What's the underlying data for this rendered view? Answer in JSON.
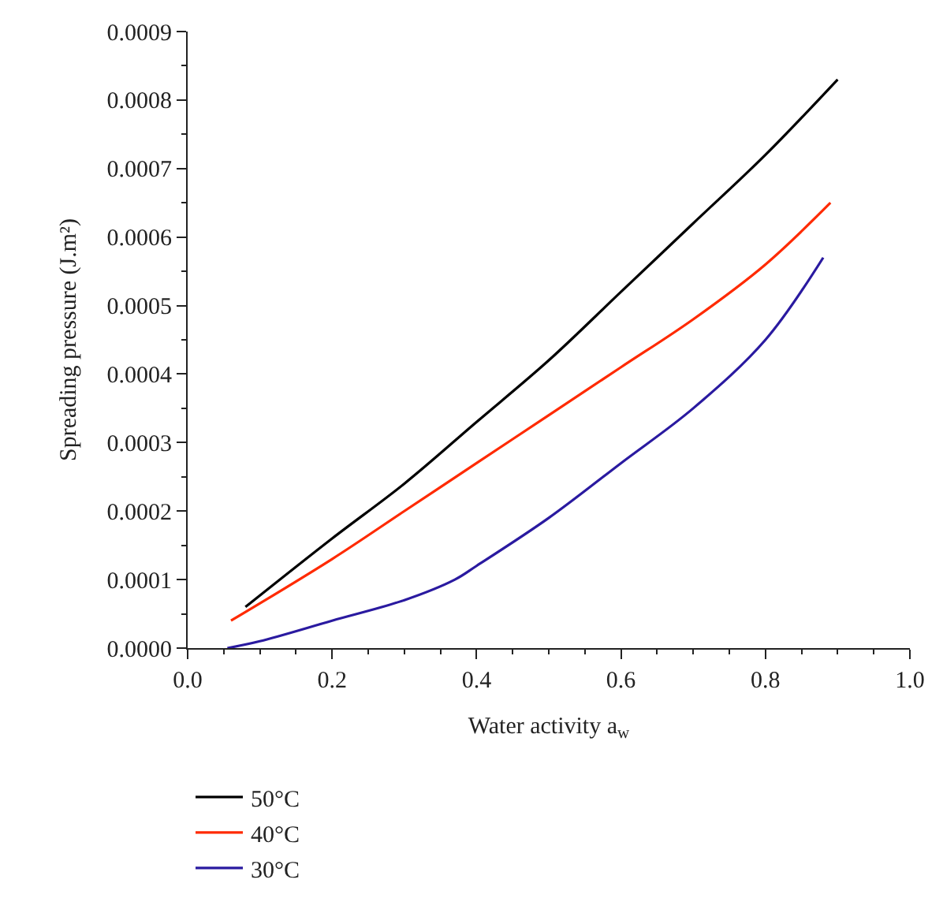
{
  "chart_data": {
    "type": "line",
    "xlabel": "Water activity a$_{w}$",
    "ylabel": "Spreading pressure (J.m²)",
    "xlim": [
      0.0,
      1.0
    ],
    "xticks": [
      {
        "value": 0.0,
        "label": "0.0"
      },
      0.2,
      0.4,
      0.6,
      0.8,
      {
        "value": 1.0,
        "label": "1.0"
      }
    ],
    "ylim": [
      0,
      0.0009
    ],
    "yticks": [
      {
        "value": 0,
        "label": "0.0000"
      },
      {
        "value": 0.0001,
        "label": "0.0001"
      },
      {
        "value": 0.0002,
        "label": "0.0002"
      },
      {
        "value": 0.0003,
        "label": "0.0003"
      },
      {
        "value": 0.0004,
        "label": "0.0004"
      },
      {
        "value": 0.0005,
        "label": "0.0005"
      },
      {
        "value": 0.0006,
        "label": "0.0006"
      },
      {
        "value": 0.0007,
        "label": "0.0007"
      },
      {
        "value": 0.0008,
        "label": "0.0008"
      },
      {
        "value": 0.0009,
        "label": "0.0009"
      }
    ],
    "legend": "bottom left",
    "marker": "none",
    "line_style": "solid",
    "series": [
      {
        "name": "50°C",
        "color": "#000000",
        "x": [
          0.08,
          0.2,
          0.3,
          0.4,
          0.5,
          0.6,
          0.7,
          0.8,
          0.9
        ],
        "values": [
          6e-05,
          0.00016,
          0.00024,
          0.00033,
          0.00042,
          0.00052,
          0.00062,
          0.00072,
          0.00083
        ]
      },
      {
        "name": "40°C",
        "color": "#ff2a00",
        "x": [
          0.06,
          0.2,
          0.3,
          0.4,
          0.5,
          0.6,
          0.7,
          0.8,
          0.89
        ],
        "values": [
          4e-05,
          0.00013,
          0.0002,
          0.00027,
          0.00034,
          0.00041,
          0.00048,
          0.00056,
          0.00065
        ]
      },
      {
        "name": "30°C",
        "color": "#2a1aa0",
        "x": [
          0.055,
          0.1,
          0.2,
          0.3,
          0.37,
          0.4,
          0.5,
          0.6,
          0.7,
          0.8,
          0.88
        ],
        "values": [
          0.0,
          1e-05,
          4e-05,
          7e-05,
          0.0001,
          0.00012,
          0.00019,
          0.00027,
          0.00035,
          0.00045,
          0.00057
        ]
      }
    ]
  }
}
